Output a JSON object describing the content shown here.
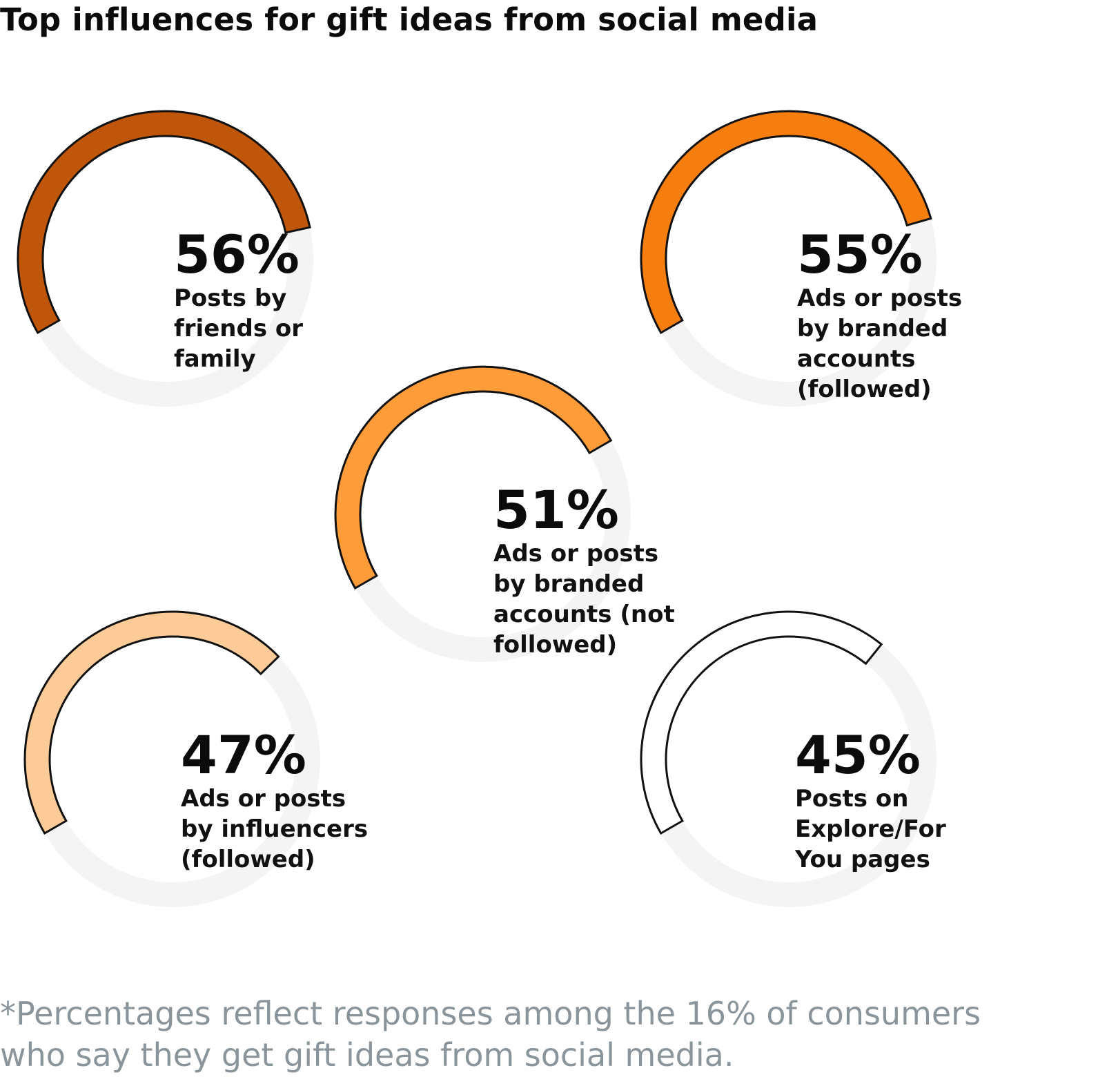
{
  "title": "Top influences for gift ideas from social media",
  "footnote": {
    "line1": "*Percentages reflect responses among the 16% of consumers",
    "line2": "who say they get gift ideas from social media."
  },
  "colors": {
    "track": "#f3f4f3",
    "outline": "#111111"
  },
  "chart_data": {
    "type": "radial-progress",
    "title": "Top influences for gift ideas from social media",
    "items": [
      {
        "value": 56,
        "value_label": "56%",
        "label_lines": [
          "Posts by",
          "friends or",
          "family"
        ],
        "color": "#c0560a"
      },
      {
        "value": 55,
        "value_label": "55%",
        "label_lines": [
          "Ads or posts",
          "by branded",
          "accounts",
          "(followed)"
        ],
        "color": "#f57e0e"
      },
      {
        "value": 51,
        "value_label": "51%",
        "label_lines": [
          "Ads or posts",
          "by branded",
          "accounts (not",
          "followed)"
        ],
        "color": "#fd9c38"
      },
      {
        "value": 47,
        "value_label": "47%",
        "label_lines": [
          "Ads or posts",
          "by influencers",
          "(followed)"
        ],
        "color": "#fdcb97"
      },
      {
        "value": 45,
        "value_label": "45%",
        "label_lines": [
          "Posts on",
          "Explore/For",
          "You pages"
        ],
        "color": "#ffffff"
      }
    ]
  }
}
